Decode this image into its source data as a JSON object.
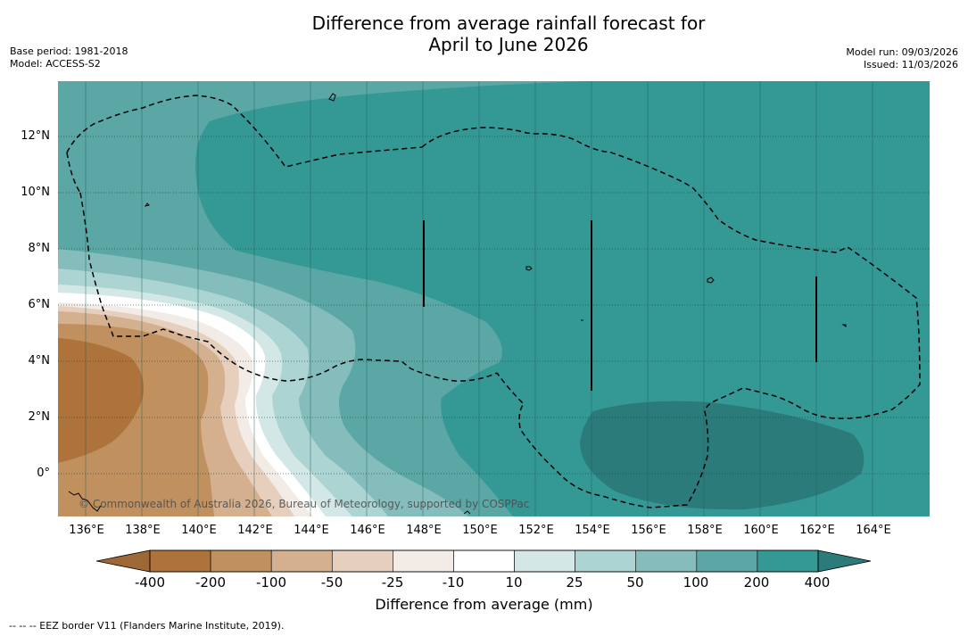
{
  "header": {
    "title_line1": "Difference from average rainfall forecast for",
    "title_line2": "April to June 2026",
    "base_period": "Base period: 1981-2018",
    "model": "Model: ACCESS-S2",
    "model_run": "Model run: 09/03/2026",
    "issued": "Issued: 11/03/2026"
  },
  "map": {
    "lat_labels": [
      "12°N",
      "10°N",
      "8°N",
      "6°N",
      "4°N",
      "2°N",
      "0°"
    ],
    "lon_labels": [
      "136°E",
      "138°E",
      "140°E",
      "142°E",
      "144°E",
      "146°E",
      "148°E",
      "150°E",
      "152°E",
      "154°E",
      "156°E",
      "158°E",
      "160°E",
      "162°E",
      "164°E"
    ],
    "copyright": "© Commonwealth of Australia 2026, Bureau of Meteorology, supported by COSPPac"
  },
  "colorbar": {
    "ticks": [
      "-400",
      "-200",
      "-100",
      "-50",
      "-25",
      "-10",
      "10",
      "25",
      "50",
      "100",
      "200",
      "400"
    ],
    "colors": [
      "#ad733a",
      "#c0915f",
      "#d4b08e",
      "#e6d0bd",
      "#f2ebe6",
      "#ffffff",
      "#d3e8e6",
      "#abd4d2",
      "#84bdbc",
      "#5aa7a5",
      "#349895",
      "#2b7b7a"
    ],
    "under_color": "#9d6736",
    "title": "Difference from average (mm)"
  },
  "footer": {
    "legend_text": "--  --  -- EEZ border V11 (Flanders Marine Institute, 2019)."
  }
}
